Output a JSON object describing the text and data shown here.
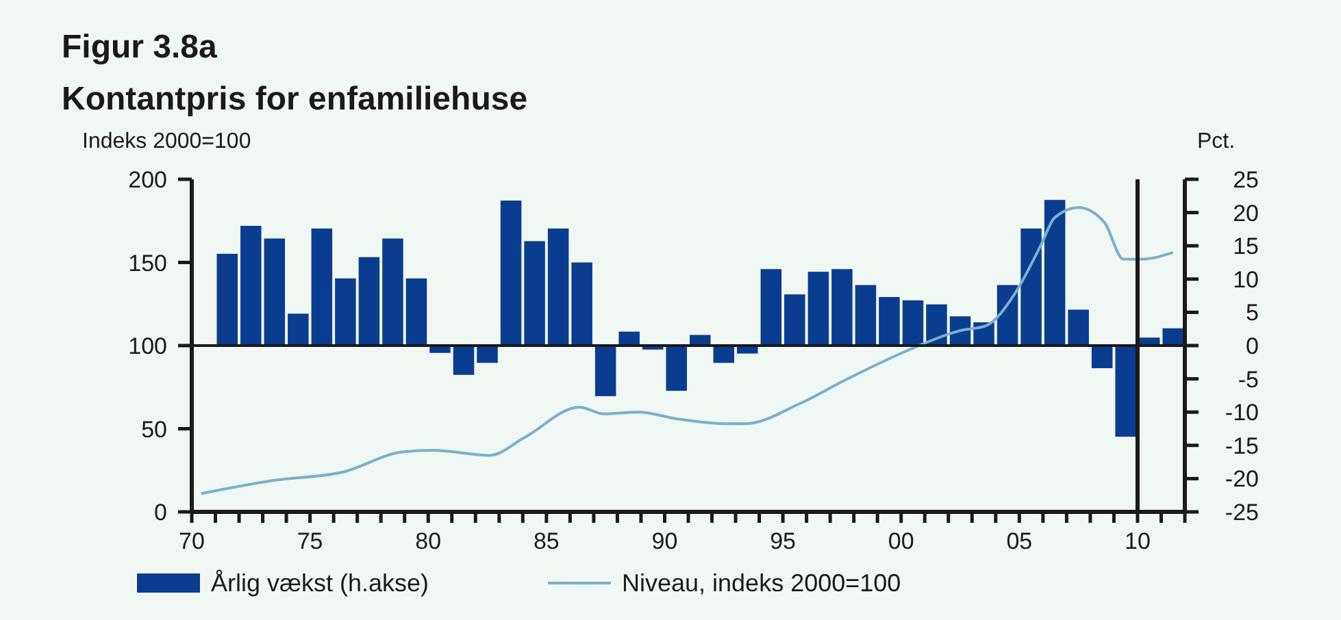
{
  "chart_data": {
    "type": "bar",
    "title": "Figur 3.8a",
    "subtitle": "Kontantpris for enfamiliehuse",
    "ylabel": "Indeks 2000=100",
    "y2label": "Pct.",
    "xlim": [
      1970,
      2012
    ],
    "xticks": [
      {
        "value": 1970,
        "label": "70"
      },
      {
        "value": 1975,
        "label": "75"
      },
      {
        "value": 1980,
        "label": "80"
      },
      {
        "value": 1985,
        "label": "85"
      },
      {
        "value": 1990,
        "label": "90"
      },
      {
        "value": 1995,
        "label": "95"
      },
      {
        "value": 2000,
        "label": "00"
      },
      {
        "value": 2005,
        "label": "05"
      },
      {
        "value": 2010,
        "label": "10"
      }
    ],
    "ylim": [
      0,
      200
    ],
    "yticks": [
      0,
      50,
      100,
      150,
      200
    ],
    "y2lim": [
      -25,
      25
    ],
    "y2ticks": [
      -25,
      -20,
      -15,
      -10,
      -5,
      0,
      5,
      10,
      15,
      20,
      25
    ],
    "legend": "bottom",
    "ref_lines": [
      {
        "axis": "x",
        "value": 2010,
        "color": "#1a1a1a"
      }
    ],
    "series": [
      {
        "name": "Årlig vækst (h.akse)",
        "axis": "y2",
        "color": "#0a3d8f",
        "x": [
          1971.5,
          1972.5,
          1973.5,
          1974.5,
          1975.5,
          1976.5,
          1977.5,
          1978.5,
          1979.5,
          1980.5,
          1981.5,
          1982.5,
          1983.5,
          1984.5,
          1985.5,
          1986.5,
          1987.5,
          1988.5,
          1989.5,
          1990.5,
          1991.5,
          1992.5,
          1993.5,
          1994.5,
          1995.5,
          1996.5,
          1997.5,
          1998.5,
          1999.5,
          2000.5,
          2001.5,
          2002.5,
          2003.5,
          2004.5,
          2005.5,
          2006.5,
          2007.5,
          2008.5,
          2009.5,
          2010.5,
          2011.5
        ],
        "values": [
          13.8,
          18,
          16.1,
          4.8,
          17.6,
          10.1,
          13.3,
          16.1,
          10.1,
          -1.1,
          -4.4,
          -2.6,
          21.8,
          15.7,
          17.6,
          12.5,
          -7.6,
          2.1,
          -0.6,
          -6.8,
          1.6,
          -2.6,
          -1.2,
          11.5,
          7.7,
          11.1,
          11.5,
          9.1,
          7.3,
          6.8,
          6.2,
          4.4,
          3.5,
          9.1,
          17.6,
          21.9,
          5.4,
          -3.4,
          -13.7,
          1.2,
          2.6
        ]
      },
      {
        "name": "Niveau, indeks 2000=100",
        "type": "line",
        "axis": "y",
        "color": "#7ab0cc",
        "x": [
          1970.4,
          1973.5,
          1976.4,
          1978.9,
          1980.2,
          1982.6,
          1984.1,
          1986.4,
          1987.4,
          1988.9,
          1990.5,
          1992.6,
          1993.4,
          1995.7,
          1997.6,
          2000.1,
          2002.5,
          2003.6,
          2004.8,
          2005.9,
          2006.5,
          2007.5,
          2008.6,
          2009.4,
          2010.2,
          2011.5
        ],
        "values": [
          11,
          19,
          24,
          36,
          37,
          34,
          45,
          63,
          59,
          60,
          56,
          53,
          53,
          65,
          79,
          96,
          109,
          112,
          131,
          160,
          177,
          183,
          174,
          152,
          152,
          156
        ]
      }
    ]
  }
}
